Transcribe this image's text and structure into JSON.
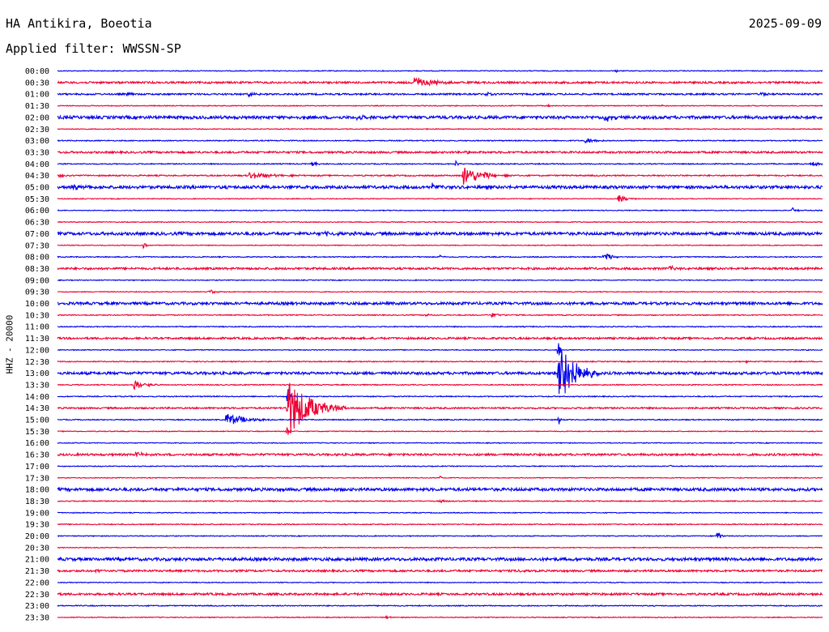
{
  "header": {
    "station": "HA Antikira, Boeotia",
    "date": "2025-09-09",
    "filter": "Applied filter: WWSSN-SP"
  },
  "chart_data": {
    "type": "line",
    "title": "HA Antikira, Boeotia",
    "subtitle": "Applied filter: WWSSN-SP",
    "date": "2025-09-09",
    "ylabel": "HHZ - 20000",
    "xlabel": "",
    "grid": false,
    "colors": {
      "even": "#0000ee",
      "odd": "#ee0033"
    },
    "rows": [
      {
        "label": "00:00",
        "noise": 0.5,
        "events": [
          {
            "t": 0.73,
            "amp": 2,
            "dur": 0.002
          }
        ]
      },
      {
        "label": "00:30",
        "noise": 1.2,
        "events": [
          {
            "t": 0.466,
            "amp": 7,
            "dur": 0.022
          },
          {
            "t": 0.79,
            "amp": 1.5,
            "dur": 0.004
          }
        ]
      },
      {
        "label": "01:00",
        "noise": 1,
        "events": [
          {
            "t": 0.09,
            "amp": 3,
            "dur": 0.004
          },
          {
            "t": 0.25,
            "amp": 3,
            "dur": 0.008
          },
          {
            "t": 0.56,
            "amp": 3,
            "dur": 0.012
          },
          {
            "t": 0.92,
            "amp": 3,
            "dur": 0.006
          }
        ]
      },
      {
        "label": "01:30",
        "noise": 0.5,
        "events": [
          {
            "t": 0.64,
            "amp": 3,
            "dur": 0.003
          },
          {
            "t": 0.79,
            "amp": 2,
            "dur": 0.003
          }
        ]
      },
      {
        "label": "02:00",
        "noise": 1.8,
        "events": [
          {
            "t": 0.39,
            "amp": 3,
            "dur": 0.01
          },
          {
            "t": 0.715,
            "amp": 5,
            "dur": 0.012
          }
        ]
      },
      {
        "label": "02:30",
        "noise": 0.5,
        "events": []
      },
      {
        "label": "03:00",
        "noise": 0.6,
        "events": [
          {
            "t": 0.69,
            "amp": 4,
            "dur": 0.012
          }
        ]
      },
      {
        "label": "03:30",
        "noise": 1.2,
        "events": [
          {
            "t": 0.53,
            "amp": 2,
            "dur": 0.01
          }
        ]
      },
      {
        "label": "04:00",
        "noise": 0.6,
        "events": [
          {
            "t": 0.33,
            "amp": 3,
            "dur": 0.008
          },
          {
            "t": 0.52,
            "amp": 4,
            "dur": 0.004
          },
          {
            "t": 0.985,
            "amp": 3,
            "dur": 0.012
          }
        ]
      },
      {
        "label": "04:30",
        "noise": 0.8,
        "events": [
          {
            "t": 0.001,
            "amp": 3,
            "dur": 0.01
          },
          {
            "t": 0.25,
            "amp": 5,
            "dur": 0.022
          },
          {
            "t": 0.53,
            "amp": 13,
            "dur": 0.022
          }
        ]
      },
      {
        "label": "05:00",
        "noise": 1.8,
        "events": [
          {
            "t": 0.02,
            "amp": 4,
            "dur": 0.01
          },
          {
            "t": 0.18,
            "amp": 3,
            "dur": 0.008
          },
          {
            "t": 0.26,
            "amp": 2,
            "dur": 0.02
          },
          {
            "t": 0.49,
            "amp": 4,
            "dur": 0.006
          }
        ]
      },
      {
        "label": "05:30",
        "noise": 0.5,
        "events": [
          {
            "t": 0.733,
            "amp": 7,
            "dur": 0.008
          }
        ]
      },
      {
        "label": "06:00",
        "noise": 0.5,
        "events": [
          {
            "t": 0.96,
            "amp": 4,
            "dur": 0.006
          }
        ]
      },
      {
        "label": "06:30",
        "noise": 0.5,
        "events": []
      },
      {
        "label": "07:00",
        "noise": 1.8,
        "events": [
          {
            "t": 0.35,
            "amp": 2,
            "dur": 0.02
          }
        ]
      },
      {
        "label": "07:30",
        "noise": 0.5,
        "events": [
          {
            "t": 0.112,
            "amp": 4,
            "dur": 0.004
          }
        ]
      },
      {
        "label": "08:00",
        "noise": 0.6,
        "events": [
          {
            "t": 0.5,
            "amp": 2,
            "dur": 0.004
          },
          {
            "t": 0.713,
            "amp": 6,
            "dur": 0.01
          }
        ]
      },
      {
        "label": "08:30",
        "noise": 1.3,
        "events": [
          {
            "t": 0.8,
            "amp": 4,
            "dur": 0.006
          }
        ]
      },
      {
        "label": "09:00",
        "noise": 0.5,
        "events": []
      },
      {
        "label": "09:30",
        "noise": 0.5,
        "events": [
          {
            "t": 0.197,
            "amp": 3,
            "dur": 0.01
          }
        ]
      },
      {
        "label": "10:00",
        "noise": 1.6,
        "events": []
      },
      {
        "label": "10:30",
        "noise": 0.6,
        "events": [
          {
            "t": 0.48,
            "amp": 2,
            "dur": 0.008
          },
          {
            "t": 0.566,
            "amp": 4,
            "dur": 0.01
          }
        ]
      },
      {
        "label": "11:00",
        "noise": 0.6,
        "events": []
      },
      {
        "label": "11:30",
        "noise": 1.2,
        "events": []
      },
      {
        "label": "12:00",
        "noise": 0.5,
        "events": [
          {
            "t": 0.654,
            "amp": 20,
            "dur": 0.002
          }
        ]
      },
      {
        "label": "12:30",
        "noise": 0.6,
        "events": [
          {
            "t": 0.9,
            "amp": 2,
            "dur": 0.003
          }
        ]
      },
      {
        "label": "13:00",
        "noise": 1.6,
        "events": [
          {
            "t": 0.654,
            "amp": 48,
            "dur": 0.018
          }
        ]
      },
      {
        "label": "13:30",
        "noise": 0.6,
        "events": [
          {
            "t": 0.1,
            "amp": 6,
            "dur": 0.014
          }
        ]
      },
      {
        "label": "14:00",
        "noise": 0.6,
        "events": [
          {
            "t": 0.3,
            "amp": 14,
            "dur": 0.004
          },
          {
            "t": 0.956,
            "amp": 2,
            "dur": 0.003
          }
        ]
      },
      {
        "label": "14:30",
        "noise": 1,
        "events": [
          {
            "t": 0.3,
            "amp": 40,
            "dur": 0.026
          }
        ]
      },
      {
        "label": "15:00",
        "noise": 0.6,
        "events": [
          {
            "t": 0.22,
            "amp": 9,
            "dur": 0.022
          },
          {
            "t": 0.654,
            "amp": 14,
            "dur": 0.002
          }
        ]
      },
      {
        "label": "15:30",
        "noise": 0.5,
        "events": [
          {
            "t": 0.3,
            "amp": 10,
            "dur": 0.002
          }
        ]
      },
      {
        "label": "16:00",
        "noise": 0.5,
        "events": []
      },
      {
        "label": "16:30",
        "noise": 1.3,
        "events": [
          {
            "t": 0.102,
            "amp": 3,
            "dur": 0.01
          }
        ]
      },
      {
        "label": "17:00",
        "noise": 0.5,
        "events": [
          {
            "t": 0.8,
            "amp": 2,
            "dur": 0.003
          }
        ]
      },
      {
        "label": "17:30",
        "noise": 0.5,
        "events": [
          {
            "t": 0.5,
            "amp": 3,
            "dur": 0.003
          }
        ]
      },
      {
        "label": "18:00",
        "noise": 1.8,
        "events": []
      },
      {
        "label": "18:30",
        "noise": 0.6,
        "events": [
          {
            "t": 0.5,
            "amp": 2,
            "dur": 0.01
          }
        ]
      },
      {
        "label": "19:00",
        "noise": 0.5,
        "events": []
      },
      {
        "label": "19:30",
        "noise": 0.6,
        "events": []
      },
      {
        "label": "20:00",
        "noise": 0.5,
        "events": [
          {
            "t": 0.862,
            "amp": 8,
            "dur": 0.004
          }
        ]
      },
      {
        "label": "20:30",
        "noise": 0.5,
        "events": []
      },
      {
        "label": "21:00",
        "noise": 1.8,
        "events": []
      },
      {
        "label": "21:30",
        "noise": 1.2,
        "events": [
          {
            "t": 0.05,
            "amp": 2,
            "dur": 0.01
          },
          {
            "t": 0.6,
            "amp": 2,
            "dur": 0.008
          }
        ]
      },
      {
        "label": "22:00",
        "noise": 0.5,
        "events": []
      },
      {
        "label": "22:30",
        "noise": 1.3,
        "events": []
      },
      {
        "label": "23:00",
        "noise": 0.6,
        "events": []
      },
      {
        "label": "23:30",
        "noise": 0.5,
        "events": [
          {
            "t": 0.43,
            "amp": 3,
            "dur": 0.003
          }
        ]
      }
    ]
  }
}
